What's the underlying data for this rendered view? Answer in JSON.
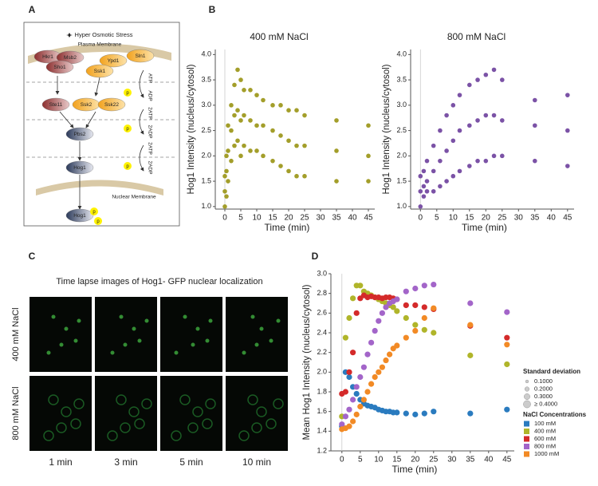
{
  "panel_labels": [
    "A",
    "B",
    "C",
    "D"
  ],
  "diagram": {
    "stimulus": "Hyper Osmotic Stress",
    "plasma_membrane": "Plasma Membrane",
    "nuclear_membrane": "Nuclear Membrane",
    "nodes": [
      "Hkr1",
      "Msb2",
      "Sho1",
      "Ypd1",
      "Sln1",
      "Ssk1",
      "Ste11",
      "Ssk2",
      "Ssk22",
      "Pbs2",
      "Hog1",
      "Hog1"
    ],
    "energy": [
      "ATP",
      "ADP",
      "2ATP",
      "2ADP",
      "2ATP",
      "2ADP"
    ],
    "phospho": "p"
  },
  "microscopy": {
    "title": "Time lapse images of  Hog1- GFP nuclear localization",
    "rows": [
      "400 mM NaCl",
      "800 mM NaCl"
    ],
    "columns": [
      "1 min",
      "3 min",
      "5 min",
      "10 min"
    ]
  },
  "chart_data": [
    {
      "type": "scatter",
      "title": "400 mM NaCl",
      "xlabel": "Time (min)",
      "ylabel": "Hog1 Intensity (nucleus/cytosol)",
      "color": "#a39e2a",
      "x": [
        0,
        0,
        0,
        0.5,
        0.5,
        0.5,
        1,
        1,
        1,
        2,
        2,
        2,
        3,
        3,
        3,
        4,
        4,
        4,
        5,
        5,
        5,
        6,
        6,
        6,
        8,
        8,
        8,
        10,
        10,
        10,
        12,
        12,
        12,
        15,
        15,
        15,
        17.5,
        17.5,
        17.5,
        20,
        20,
        20,
        22.5,
        22.5,
        22.5,
        25,
        25,
        25,
        35,
        35,
        35,
        45,
        45,
        45
      ],
      "y": [
        1.0,
        1.3,
        1.6,
        1.2,
        1.7,
        2.0,
        1.5,
        2.1,
        2.6,
        1.9,
        2.5,
        3.0,
        2.2,
        2.8,
        3.4,
        2.3,
        2.9,
        3.7,
        2.0,
        2.7,
        3.5,
        2.2,
        2.8,
        3.3,
        2.1,
        2.7,
        3.3,
        2.1,
        2.6,
        3.2,
        2.0,
        2.6,
        3.1,
        1.9,
        2.5,
        3.0,
        1.8,
        2.4,
        3.0,
        1.7,
        2.3,
        2.9,
        1.6,
        2.2,
        2.9,
        1.6,
        2.2,
        2.8,
        1.5,
        2.1,
        2.7,
        1.5,
        2.0,
        2.6
      ],
      "xlim": [
        -3,
        47
      ],
      "ylim": [
        0.95,
        4.1
      ],
      "xticks": [
        0,
        5,
        10,
        15,
        20,
        25,
        30,
        35,
        40,
        45
      ],
      "yticks": [
        {
          "value": 1,
          "label": "1.0"
        },
        1.5,
        {
          "value": 2,
          "label": "2.0"
        },
        2.5,
        {
          "value": 3,
          "label": "3.0"
        },
        3.5,
        {
          "value": 4,
          "label": "4.0"
        }
      ]
    },
    {
      "type": "scatter",
      "title": "800 mM NaCl",
      "xlabel": "Time (min)",
      "ylabel": "Hog1 Intensity (nucleus/cytosol)",
      "color": "#7b52a6",
      "x": [
        0,
        0,
        0,
        1,
        1,
        1,
        2,
        2,
        2,
        4,
        4,
        4,
        6,
        6,
        6,
        8,
        8,
        8,
        10,
        10,
        10,
        12,
        12,
        12,
        15,
        15,
        15,
        17.5,
        17.5,
        17.5,
        20,
        20,
        20,
        22.5,
        22.5,
        22.5,
        25,
        25,
        25,
        35,
        35,
        35,
        45,
        45,
        45
      ],
      "y": [
        1.0,
        1.3,
        1.6,
        1.2,
        1.4,
        1.7,
        1.3,
        1.5,
        1.9,
        1.3,
        1.7,
        2.2,
        1.4,
        1.9,
        2.5,
        1.5,
        2.1,
        2.8,
        1.6,
        2.3,
        3.0,
        1.7,
        2.5,
        3.2,
        1.8,
        2.6,
        3.4,
        1.9,
        2.7,
        3.5,
        1.9,
        2.8,
        3.6,
        2.0,
        2.8,
        3.7,
        2.0,
        2.7,
        3.5,
        1.9,
        2.6,
        3.1,
        1.8,
        2.5,
        3.2
      ],
      "xlim": [
        -3,
        47
      ],
      "ylim": [
        0.95,
        4.1
      ],
      "xticks": [
        0,
        5,
        10,
        15,
        20,
        25,
        30,
        35,
        40,
        45
      ],
      "yticks": [
        {
          "value": 1,
          "label": "1.0"
        },
        1.5,
        {
          "value": 2,
          "label": "2.0"
        },
        2.5,
        {
          "value": 3,
          "label": "3.0"
        },
        3.5,
        {
          "value": 4,
          "label": "4.0"
        }
      ]
    },
    {
      "type": "multi_scatter",
      "xlabel": "Time (min)",
      "ylabel": "Mean Hog1 Intensity (nucleus/cytosol)",
      "x": [
        0,
        1,
        2,
        3,
        4,
        5,
        6,
        7,
        8,
        9,
        10,
        11,
        12,
        13,
        14,
        15,
        17.5,
        20,
        22.5,
        25,
        35,
        45
      ],
      "series": [
        {
          "name": "100 mM",
          "color": "#2a7bbf",
          "values": [
            1.45,
            2.0,
            1.95,
            1.85,
            1.78,
            1.72,
            1.68,
            1.66,
            1.65,
            1.64,
            1.62,
            1.61,
            1.6,
            1.6,
            1.59,
            1.59,
            1.58,
            1.57,
            1.58,
            1.6,
            1.58,
            1.62
          ]
        },
        {
          "name": "400 mM",
          "color": "#b0b52a",
          "values": [
            1.55,
            2.35,
            2.55,
            2.75,
            2.88,
            2.88,
            2.82,
            2.8,
            2.78,
            2.76,
            2.74,
            2.72,
            2.7,
            2.68,
            2.66,
            2.62,
            2.55,
            2.48,
            2.43,
            2.4,
            2.17,
            2.08
          ]
        },
        {
          "name": "600 mM",
          "color": "#d42a2a",
          "values": [
            1.78,
            1.8,
            2.0,
            2.2,
            2.6,
            2.75,
            2.78,
            2.76,
            2.77,
            2.76,
            2.76,
            2.75,
            2.76,
            2.76,
            2.75,
            2.74,
            2.68,
            2.68,
            2.66,
            2.64,
            2.47,
            2.35
          ]
        },
        {
          "name": "800 mM",
          "color": "#a365c9",
          "values": [
            1.47,
            1.55,
            1.62,
            1.72,
            1.85,
            1.95,
            2.05,
            2.18,
            2.3,
            2.42,
            2.52,
            2.6,
            2.66,
            2.7,
            2.72,
            2.74,
            2.82,
            2.85,
            2.88,
            2.89,
            2.7,
            2.61
          ]
        },
        {
          "name": "1000 mM",
          "color": "#f28a25",
          "values": [
            1.42,
            1.43,
            1.45,
            1.5,
            1.57,
            1.65,
            1.72,
            1.8,
            1.88,
            1.95,
            2.0,
            2.05,
            2.12,
            2.18,
            2.24,
            2.27,
            2.35,
            2.42,
            2.55,
            2.65,
            2.48,
            2.28
          ]
        }
      ],
      "legend_title": "NaCl Concentrations",
      "size_legend": {
        "title": "Standard deviation",
        "values": [
          {
            "value": 0.1,
            "label": "0.1000"
          },
          {
            "value": 0.2,
            "label": "0.2000"
          },
          {
            "value": 0.3,
            "label": "0.3000"
          },
          {
            "value": 0.4,
            "label": "≥ 0.4000"
          }
        ]
      },
      "xlim": [
        -3,
        47
      ],
      "ylim": [
        1.2,
        3.0
      ],
      "xticks": [
        0,
        5,
        10,
        15,
        20,
        25,
        30,
        35,
        40,
        45
      ],
      "yticks": [
        1.2,
        1.4,
        1.6,
        1.8,
        {
          "value": 2,
          "label": "2.0"
        },
        2.2,
        2.4,
        2.6,
        2.8,
        {
          "value": 3,
          "label": "3.0"
        }
      ]
    }
  ]
}
